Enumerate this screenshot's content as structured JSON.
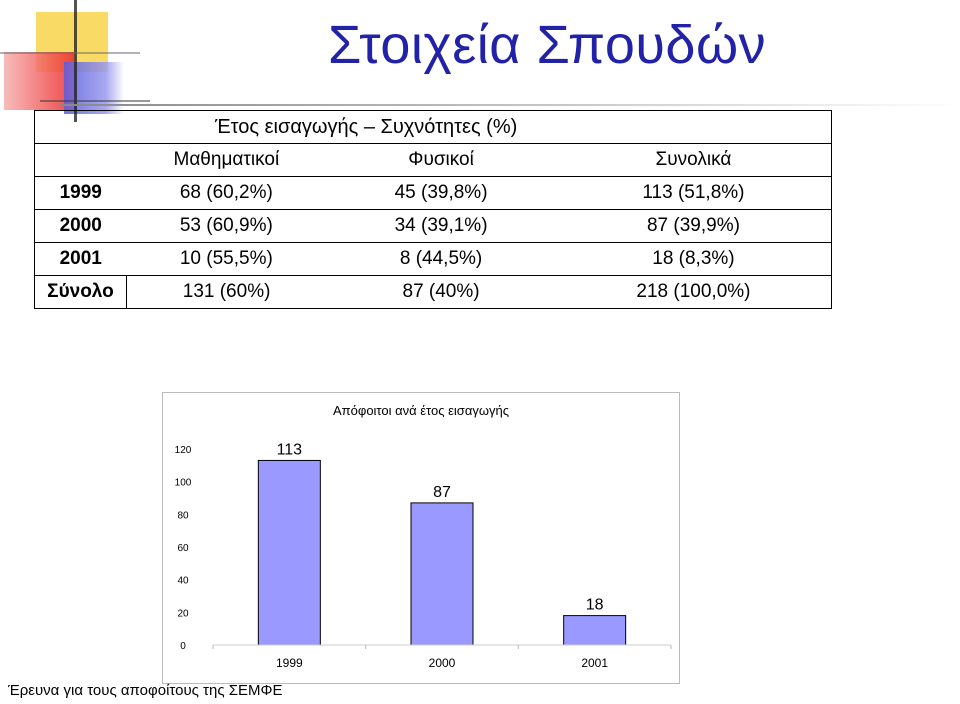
{
  "page": {
    "title": "Στοιχεία Σπουδών",
    "footer": "Έρευνα για τους αποφοίτους της ΣΕΜΦΕ"
  },
  "table": {
    "caption": "Έτος εισαγωγής – Συχνότητες (%)",
    "columns": [
      "Μαθηματικοί",
      "Φυσικοί",
      "Συνολικά"
    ],
    "rows": [
      {
        "label": "1999",
        "cells": [
          "68 (60,2%)",
          "45 (39,8%)",
          "113 (51,8%)"
        ]
      },
      {
        "label": "2000",
        "cells": [
          "53 (60,9%)",
          "34 (39,1%)",
          "87 (39,9%)"
        ]
      },
      {
        "label": "2001",
        "cells": [
          "10 (55,5%)",
          "8 (44,5%)",
          "18 (8,3%)"
        ]
      },
      {
        "label": "Σύνολο",
        "cells": [
          "131 (60%)",
          "87 (40%)",
          "218 (100,0%)"
        ]
      }
    ]
  },
  "colors": {
    "title": "#2222a8",
    "bar": "#9999ff"
  },
  "chart_data": {
    "type": "bar",
    "title": "Απόφοιτοι ανά έτος εισαγωγής",
    "categories": [
      "1999",
      "2000",
      "2001"
    ],
    "values": [
      113,
      87,
      18
    ],
    "data_labels": [
      "113",
      "87",
      "18"
    ],
    "y_ticks": [
      "0",
      "20",
      "40",
      "60",
      "80",
      "100",
      "120"
    ],
    "ylim": [
      0,
      120
    ],
    "xlabel": "",
    "ylabel": "",
    "grid": false,
    "legend": "none"
  }
}
